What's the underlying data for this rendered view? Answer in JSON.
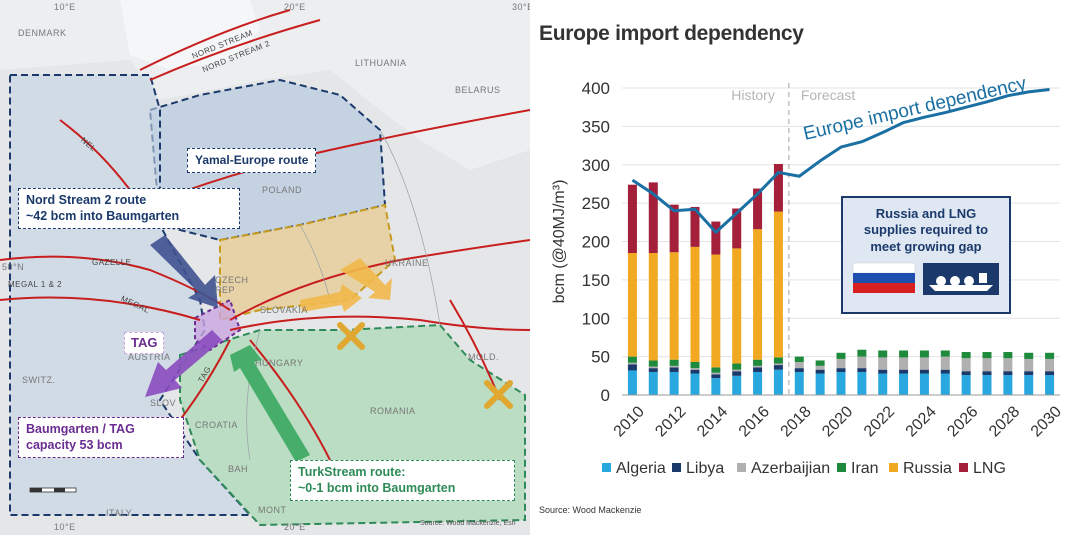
{
  "map": {
    "countries": [
      "DENMARK",
      "LITHUANIA",
      "BELARUS",
      "POLAND",
      "CZECH REP",
      "SLOVAKIA",
      "UKRAINE",
      "HUNGARY",
      "AUSTRIA",
      "SWITZ.",
      "ROMANIA",
      "CROATIA",
      "BAH",
      "SLOV",
      "MOLD.",
      "ITALY",
      "MONT"
    ],
    "pipelines": [
      "NORD STREAM",
      "NORD STREAM 2",
      "NEL",
      "GAZELLE",
      "MEGAL 1 & 2",
      "MEGAL",
      "TAG"
    ],
    "graticule": [
      "10°E",
      "20°E",
      "30°E",
      "50°N"
    ],
    "boxes": {
      "yamal": "Yamal-Europe route",
      "nord_stream_line1": "Nord Stream 2 route",
      "nord_stream_line2": "~42 bcm into Baumgarten",
      "baumgarten_line1": "Baumgarten / TAG",
      "baumgarten_line2": "capacity 53 bcm",
      "turkstream_line1": "TurkStream route:",
      "turkstream_line2": "~0-1 bcm into Baumgarten",
      "tag": "TAG"
    },
    "attribution": "Source: Wood Mackenzie, Esri",
    "colors": {
      "yamal": "#1b3a6b",
      "nord": "#1b3a6b",
      "baumgarten": "#6a2c91",
      "turkstream": "#2e8b57",
      "ukraine": "#d4a017"
    }
  },
  "chart": {
    "title": "Europe import dependency",
    "source": "Source: Wood Mackenzie",
    "history_label": "History",
    "forecast_label": "Forecast",
    "line_label": "Europe import dependency",
    "callout": "Russia  and LNG supplies required to meet growing gap",
    "ylabel": "bcm (@40MJ/m³)"
  },
  "chart_data": {
    "type": "bar",
    "x": [
      2010,
      2011,
      2012,
      2013,
      2014,
      2015,
      2016,
      2017,
      2018,
      2019,
      2020,
      2021,
      2022,
      2023,
      2024,
      2025,
      2026,
      2027,
      2028,
      2029,
      2030
    ],
    "x_tick_labels": [
      "2010",
      "2012",
      "2014",
      "2016",
      "2018",
      "2020",
      "2022",
      "2024",
      "2026",
      "2028",
      "2030"
    ],
    "ylim": [
      0,
      400
    ],
    "y_ticks": [
      0,
      50,
      100,
      150,
      200,
      250,
      300,
      350,
      400
    ],
    "stacked": true,
    "series": [
      {
        "name": "Algeria",
        "color": "#29a8e0",
        "values": [
          32,
          30,
          30,
          28,
          22,
          25,
          30,
          33,
          30,
          28,
          30,
          30,
          28,
          28,
          28,
          28,
          26,
          26,
          26,
          26,
          26
        ]
      },
      {
        "name": "Libya",
        "color": "#1b3a6b",
        "values": [
          8,
          5,
          6,
          5,
          5,
          6,
          6,
          6,
          5,
          5,
          5,
          5,
          5,
          5,
          5,
          5,
          5,
          5,
          5,
          5,
          5
        ]
      },
      {
        "name": "Azerbaijian",
        "color": "#b0b0b0",
        "values": [
          2,
          2,
          2,
          2,
          2,
          2,
          2,
          2,
          8,
          5,
          12,
          15,
          16,
          16,
          16,
          17,
          17,
          17,
          17,
          16,
          16
        ]
      },
      {
        "name": "Iran",
        "color": "#1e8a3c",
        "values": [
          8,
          8,
          8,
          8,
          7,
          8,
          8,
          8,
          7,
          7,
          8,
          9,
          9,
          9,
          9,
          8,
          8,
          8,
          8,
          8,
          8
        ]
      },
      {
        "name": "Russia",
        "color": "#f0a920",
        "values": [
          135,
          140,
          140,
          150,
          147,
          150,
          170,
          190,
          0,
          0,
          0,
          0,
          0,
          0,
          0,
          0,
          0,
          0,
          0,
          0,
          0
        ]
      },
      {
        "name": "LNG",
        "color": "#a31f3a",
        "values": [
          89,
          92,
          62,
          52,
          43,
          52,
          53,
          62,
          0,
          0,
          0,
          0,
          0,
          0,
          0,
          0,
          0,
          0,
          0,
          0,
          0
        ]
      }
    ],
    "line": {
      "name": "Europe import dependency",
      "color": "#1a6fa3",
      "values": [
        280,
        262,
        240,
        242,
        212,
        237,
        262,
        290,
        285,
        305,
        323,
        330,
        342,
        355,
        362,
        368,
        375,
        382,
        390,
        395,
        398
      ]
    }
  }
}
